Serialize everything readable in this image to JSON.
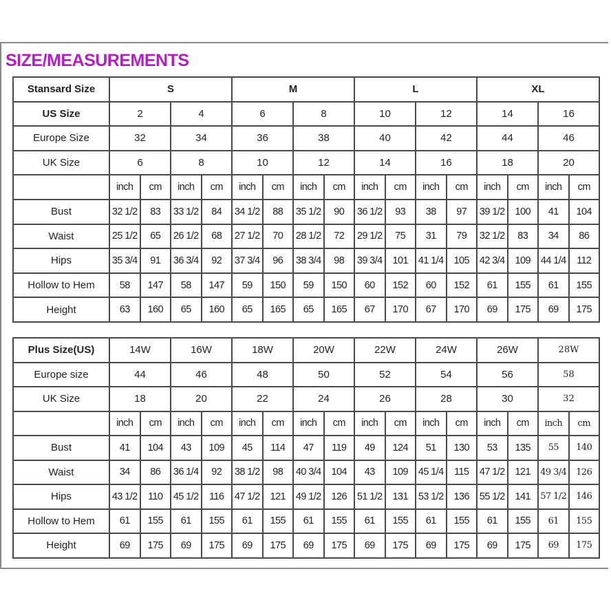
{
  "title": "SIZE/MEASUREMENTS",
  "standard": {
    "header_label": "Stansard Size",
    "groups": [
      "S",
      "M",
      "L",
      "XL"
    ],
    "size_rows": [
      {
        "label": "US Size",
        "values": [
          "2",
          "4",
          "6",
          "8",
          "10",
          "12",
          "14",
          "16"
        ]
      },
      {
        "label": "Europe Size",
        "values": [
          "32",
          "34",
          "36",
          "38",
          "40",
          "42",
          "44",
          "46"
        ]
      },
      {
        "label": "UK Size",
        "values": [
          "6",
          "8",
          "10",
          "12",
          "14",
          "16",
          "18",
          "20"
        ]
      }
    ],
    "unit_labels": {
      "inch": "inch",
      "cm": "cm"
    },
    "measurements": [
      {
        "label": "Bust",
        "values": [
          "32 1/2",
          "83",
          "33 1/2",
          "84",
          "34 1/2",
          "88",
          "35 1/2",
          "90",
          "36 1/2",
          "93",
          "38",
          "97",
          "39 1/2",
          "100",
          "41",
          "104"
        ]
      },
      {
        "label": "Waist",
        "values": [
          "25 1/2",
          "65",
          "26 1/2",
          "68",
          "27 1/2",
          "70",
          "28 1/2",
          "72",
          "29 1/2",
          "75",
          "31",
          "79",
          "32 1/2",
          "83",
          "34",
          "86"
        ]
      },
      {
        "label": "Hips",
        "values": [
          "35 3/4",
          "91",
          "36 3/4",
          "92",
          "37 3/4",
          "96",
          "38 3/4",
          "98",
          "39 3/4",
          "101",
          "41 1/4",
          "105",
          "42 3/4",
          "109",
          "44 1/4",
          "112"
        ]
      },
      {
        "label": "Hollow to Hem",
        "values": [
          "58",
          "147",
          "58",
          "147",
          "59",
          "150",
          "59",
          "150",
          "60",
          "152",
          "60",
          "152",
          "61",
          "155",
          "61",
          "155"
        ]
      },
      {
        "label": "Height",
        "values": [
          "63",
          "160",
          "65",
          "160",
          "65",
          "165",
          "65",
          "165",
          "67",
          "170",
          "67",
          "170",
          "69",
          "175",
          "69",
          "175"
        ]
      }
    ]
  },
  "plus": {
    "header_label": "Plus Size(US)",
    "sizes": [
      "14W",
      "16W",
      "18W",
      "20W",
      "22W",
      "24W",
      "26W",
      "28W"
    ],
    "size_rows": [
      {
        "label": "Europe size",
        "values": [
          "44",
          "46",
          "48",
          "50",
          "52",
          "54",
          "56",
          "58"
        ]
      },
      {
        "label": "UK Size",
        "values": [
          "18",
          "20",
          "22",
          "24",
          "26",
          "28",
          "30",
          "32"
        ]
      }
    ],
    "unit_labels": {
      "inch": "inch",
      "cm": "cm"
    },
    "measurements": [
      {
        "label": "Bust",
        "values": [
          "41",
          "104",
          "43",
          "109",
          "45",
          "114",
          "47",
          "119",
          "49",
          "124",
          "51",
          "130",
          "53",
          "135",
          "55",
          "140"
        ]
      },
      {
        "label": "Waist",
        "values": [
          "34",
          "86",
          "36 1/4",
          "92",
          "38 1/2",
          "98",
          "40 3/4",
          "104",
          "43",
          "109",
          "45 1/4",
          "115",
          "47 1/2",
          "121",
          "49 3/4",
          "126"
        ]
      },
      {
        "label": "Hips",
        "values": [
          "43 1/2",
          "110",
          "45 1/2",
          "116",
          "47 1/2",
          "121",
          "49 1/2",
          "126",
          "51 1/2",
          "131",
          "53 1/2",
          "136",
          "55 1/2",
          "141",
          "57 1/2",
          "146"
        ]
      },
      {
        "label": "Hollow to Hem",
        "values": [
          "61",
          "155",
          "61",
          "155",
          "61",
          "155",
          "61",
          "155",
          "61",
          "155",
          "61",
          "155",
          "61",
          "155",
          "61",
          "155"
        ]
      },
      {
        "label": "Height",
        "values": [
          "69",
          "175",
          "69",
          "175",
          "69",
          "175",
          "69",
          "175",
          "69",
          "175",
          "69",
          "175",
          "69",
          "175",
          "69",
          "175"
        ]
      }
    ]
  }
}
